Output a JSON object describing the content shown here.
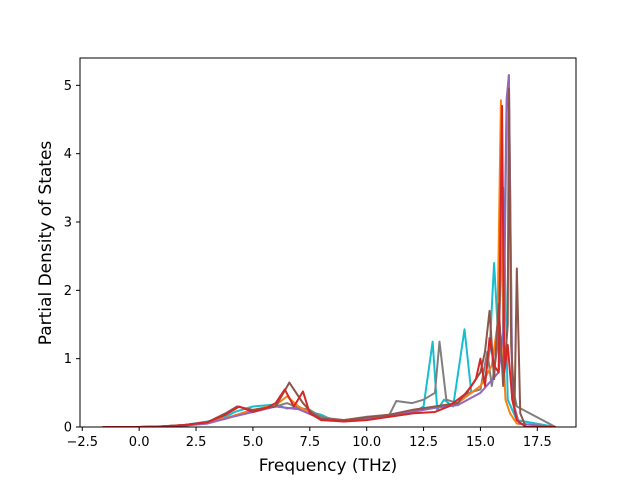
{
  "chart_data": {
    "type": "line",
    "title": "",
    "xlabel": "Frequency (THz)",
    "ylabel": "Partial Density of States",
    "xlim": [
      -2.6,
      19.2
    ],
    "ylim": [
      0,
      5.4
    ],
    "x_ticks": [
      -2.5,
      0.0,
      2.5,
      5.0,
      7.5,
      10.0,
      12.5,
      15.0,
      17.5
    ],
    "x_tick_labels": [
      "−2.5",
      "0.0",
      "2.5",
      "5.0",
      "7.5",
      "10.0",
      "12.5",
      "15.0",
      "17.5"
    ],
    "y_ticks": [
      0,
      1,
      2,
      3,
      4,
      5
    ],
    "y_tick_labels": [
      "0",
      "1",
      "2",
      "3",
      "4",
      "5"
    ],
    "grid": false,
    "legend": "none",
    "series": [
      {
        "color": "#17becf",
        "x": [
          -1.6,
          0,
          1,
          2,
          3,
          3.8,
          4.2,
          5,
          6,
          6.5,
          7,
          7.5,
          8,
          8.5,
          9,
          9.5,
          10,
          11,
          12,
          12.5,
          12.9,
          13.1,
          13.4,
          13.8,
          14.0,
          14.3,
          14.6,
          15.0,
          15.2,
          15.4,
          15.6,
          15.8,
          16.0,
          16.2,
          16.6,
          18.3
        ],
        "y": [
          0,
          0,
          0.01,
          0.03,
          0.08,
          0.15,
          0.22,
          0.3,
          0.33,
          0.27,
          0.3,
          0.22,
          0.18,
          0.1,
          0.08,
          0.1,
          0.12,
          0.15,
          0.2,
          0.3,
          1.25,
          0.25,
          0.4,
          0.3,
          0.75,
          1.43,
          0.5,
          0.6,
          0.7,
          1.1,
          2.4,
          1.2,
          3.5,
          0.4,
          0.1,
          0
        ]
      },
      {
        "color": "#7f7f7f",
        "x": [
          -1.6,
          0,
          1,
          2,
          3,
          3.8,
          4.5,
          5,
          6,
          6.5,
          7,
          7.5,
          8,
          8.5,
          9,
          10,
          11,
          11.3,
          12,
          12.5,
          13.0,
          13.2,
          13.5,
          14.0,
          14.5,
          15.0,
          15.3,
          15.5,
          15.8,
          16.0,
          16.15,
          16.25,
          16.4,
          16.6,
          18.3
        ],
        "y": [
          0,
          0,
          0.01,
          0.03,
          0.07,
          0.12,
          0.2,
          0.25,
          0.3,
          0.35,
          0.28,
          0.25,
          0.15,
          0.12,
          0.1,
          0.15,
          0.18,
          0.38,
          0.35,
          0.4,
          0.5,
          1.25,
          0.4,
          0.35,
          0.5,
          0.55,
          1.1,
          0.6,
          1.3,
          0.8,
          4.6,
          5.15,
          0.6,
          0.3,
          0
        ]
      },
      {
        "color": "#ff7f0e",
        "x": [
          -1.6,
          0,
          1,
          2,
          3,
          4,
          5,
          6,
          6.5,
          7,
          8,
          9,
          10,
          11,
          12,
          13,
          14,
          15,
          15.5,
          15.75,
          15.9,
          16.0,
          16.1,
          16.3,
          16.6,
          18.3
        ],
        "y": [
          0,
          0,
          0.01,
          0.02,
          0.06,
          0.15,
          0.25,
          0.32,
          0.45,
          0.3,
          0.12,
          0.1,
          0.14,
          0.18,
          0.22,
          0.3,
          0.35,
          0.6,
          0.9,
          1.5,
          4.78,
          1.2,
          0.4,
          0.2,
          0.05,
          0
        ]
      },
      {
        "color": "#9467bd",
        "x": [
          -1.6,
          0,
          1,
          2,
          3,
          4,
          5,
          6,
          7,
          8,
          9,
          10,
          11,
          12,
          13,
          14,
          15,
          15.8,
          16.0,
          16.15,
          16.25,
          16.4,
          16.7,
          18.3
        ],
        "y": [
          0,
          0,
          0.01,
          0.02,
          0.05,
          0.14,
          0.22,
          0.3,
          0.26,
          0.12,
          0.1,
          0.13,
          0.17,
          0.22,
          0.28,
          0.32,
          0.5,
          0.8,
          1.4,
          4.8,
          5.15,
          0.4,
          0.05,
          0
        ]
      },
      {
        "color": "#8c564b",
        "x": [
          -1.6,
          0,
          1,
          2,
          3,
          3.8,
          4.3,
          5,
          6,
          6.6,
          7.2,
          7.6,
          8,
          9,
          10,
          11,
          12,
          13,
          14,
          14.6,
          15.0,
          15.2,
          15.4,
          15.6,
          15.8,
          16.0,
          16.2,
          16.25,
          16.35,
          16.5,
          16.6,
          16.75,
          17,
          18.3
        ],
        "y": [
          0,
          0,
          0.01,
          0.03,
          0.07,
          0.2,
          0.3,
          0.25,
          0.3,
          0.65,
          0.35,
          0.2,
          0.12,
          0.1,
          0.14,
          0.18,
          0.25,
          0.3,
          0.35,
          0.6,
          0.8,
          1.1,
          1.7,
          0.7,
          1.8,
          0.6,
          1.5,
          4.95,
          1.2,
          0.3,
          2.32,
          0.2,
          0,
          0
        ]
      },
      {
        "color": "#d62728",
        "x": [
          -1.6,
          0,
          1,
          2,
          3,
          3.8,
          4.4,
          5,
          5.6,
          6,
          6.4,
          6.8,
          7.2,
          7.5,
          8,
          9,
          10,
          11,
          12,
          13,
          13.6,
          14.0,
          14.4,
          14.8,
          15.0,
          15.2,
          15.4,
          15.6,
          15.8,
          15.95,
          16.05,
          16.2,
          16.4,
          16.6,
          17,
          18.3
        ],
        "y": [
          0,
          0,
          0.01,
          0.03,
          0.07,
          0.18,
          0.3,
          0.22,
          0.28,
          0.35,
          0.55,
          0.3,
          0.52,
          0.2,
          0.1,
          0.08,
          0.1,
          0.15,
          0.2,
          0.22,
          0.3,
          0.4,
          0.5,
          0.7,
          1.0,
          0.6,
          1.3,
          0.9,
          0.8,
          4.7,
          0.8,
          1.2,
          0.4,
          0.1,
          0,
          0
        ]
      }
    ]
  }
}
